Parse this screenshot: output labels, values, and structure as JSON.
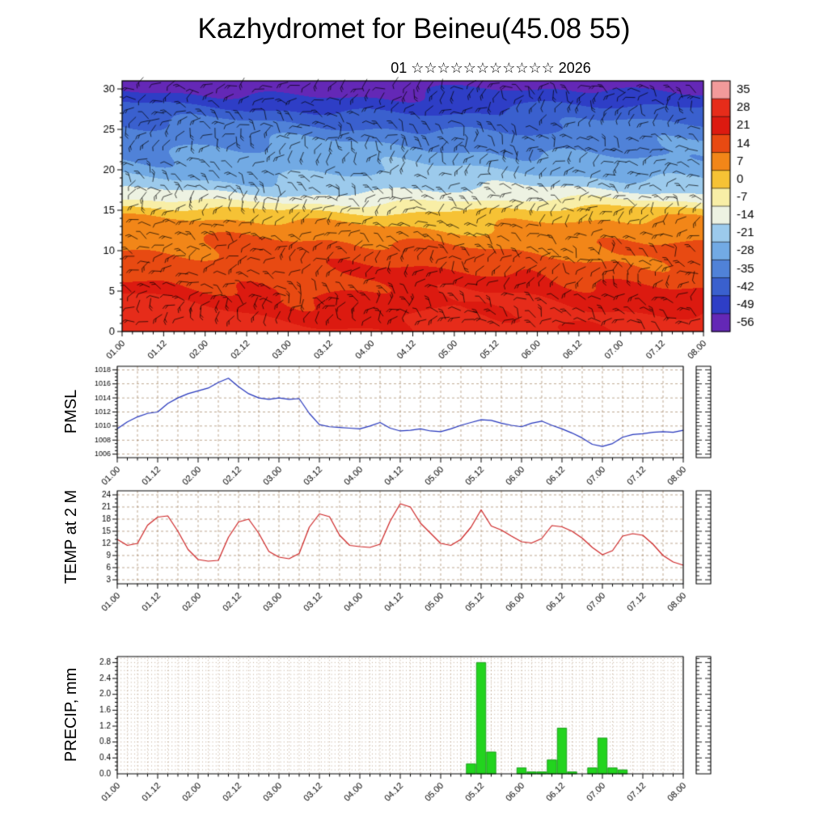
{
  "title": "Kazhydromet for Beineu(45.08 55)",
  "subtitle": {
    "text": "01 ☆☆☆☆☆☆☆☆☆☆☆ 2026",
    "day": "01",
    "stars": "☆☆☆☆☆☆☆☆☆☆☆",
    "year": "2026"
  },
  "x_axis": {
    "tick_labels": [
      "01.00",
      "01.12",
      "02.00",
      "02.12",
      "03.00",
      "03.12",
      "04.00",
      "04.12",
      "05.00",
      "05.12",
      "06.00",
      "06.12",
      "07.00",
      "07.12",
      "08.00"
    ],
    "hours_total": 168,
    "major_step_hours": 12,
    "minor_step_hours": 3
  },
  "chart_data": [
    {
      "type": "heatmap",
      "name": "temperature-wind-cross-section",
      "overlay": "wind-barbs",
      "ylim": [
        0,
        31
      ],
      "y_ticks": [
        0,
        5,
        10,
        15,
        20,
        25,
        30
      ],
      "y_tick_labels": [
        "0",
        "5",
        "10",
        "15",
        "20",
        "25",
        "30"
      ],
      "temperature_profile": {
        "heights": [
          0,
          2,
          5,
          8,
          11,
          13,
          14.5,
          15.5,
          16.5,
          18,
          20,
          23,
          26,
          28,
          30,
          31
        ],
        "values": [
          27,
          25,
          20,
          15,
          10,
          5,
          0,
          -6,
          -13,
          -20,
          -26,
          -32,
          -40,
          -47,
          -54,
          -58
        ]
      },
      "colorbar": {
        "labels": [
          "35",
          "28",
          "21",
          "14",
          "7",
          "0",
          "-7",
          "-14",
          "-21",
          "-28",
          "-35",
          "-42",
          "-49",
          "-56"
        ],
        "colors": [
          "#f29a9a",
          "#e62c1a",
          "#dc1a10",
          "#e84a12",
          "#f28618",
          "#f6c235",
          "#f8eea6",
          "#edf2e2",
          "#9ccaec",
          "#72aae4",
          "#5082d8",
          "#3a60ce",
          "#2e3ec6",
          "#6428b6"
        ]
      }
    },
    {
      "type": "line",
      "name": "pmsl",
      "ylabel": "PMSL",
      "line_color": "#2233bb",
      "ylim": [
        1005.5,
        1018.5
      ],
      "y_ticks": [
        1006,
        1008,
        1010,
        1012,
        1014,
        1016,
        1018
      ],
      "y_tick_labels": [
        "1006",
        "1008",
        "1010",
        "1012",
        "1014",
        "1016",
        "1018"
      ],
      "x_step_hours": 3,
      "values": [
        1009.6,
        1010.6,
        1011.3,
        1011.8,
        1012.0,
        1013.2,
        1014.0,
        1014.6,
        1015.0,
        1015.4,
        1016.2,
        1016.8,
        1015.6,
        1014.6,
        1014.0,
        1013.8,
        1014.0,
        1013.8,
        1013.9,
        1011.8,
        1010.2,
        1009.9,
        1009.8,
        1009.7,
        1009.6,
        1010.0,
        1010.5,
        1009.7,
        1009.3,
        1009.4,
        1009.6,
        1009.3,
        1009.2,
        1009.6,
        1010.1,
        1010.5,
        1010.9,
        1010.8,
        1010.4,
        1010.1,
        1009.9,
        1010.4,
        1010.7,
        1010.1,
        1009.6,
        1009.0,
        1008.3,
        1007.4,
        1007.1,
        1007.5,
        1008.4,
        1008.8,
        1008.9,
        1009.1,
        1009.2,
        1009.1,
        1009.4
      ]
    },
    {
      "type": "line",
      "name": "temp-at-2m",
      "ylabel": "TEMP at 2 M",
      "line_color": "#cc2020",
      "ylim": [
        2,
        25
      ],
      "y_ticks": [
        3,
        6,
        9,
        12,
        15,
        18,
        21,
        24
      ],
      "y_tick_labels": [
        "3",
        "6",
        "9",
        "12",
        "15",
        "18",
        "21",
        "24"
      ],
      "x_step_hours": 3,
      "values": [
        13.0,
        11.5,
        12.0,
        16.5,
        18.5,
        18.8,
        15.0,
        10.5,
        8.0,
        7.6,
        7.8,
        13.5,
        17.3,
        18.0,
        14.5,
        10.0,
        8.6,
        8.2,
        9.5,
        16.0,
        19.3,
        18.6,
        14.0,
        11.5,
        11.2,
        11.0,
        11.8,
        17.5,
        21.8,
        21.0,
        17.0,
        14.5,
        12.0,
        11.5,
        13.0,
        16.0,
        20.3,
        16.3,
        15.3,
        13.8,
        12.4,
        12.1,
        13.2,
        16.4,
        16.1,
        15.0,
        13.3,
        11.0,
        9.2,
        10.2,
        13.8,
        14.4,
        14.0,
        11.8,
        9.0,
        7.4,
        6.6
      ]
    },
    {
      "type": "bar",
      "name": "precip",
      "ylabel": "PRECIP, mm",
      "bar_color": "#22d41e",
      "bar_edge_color": "#0e8e0e",
      "ylim": [
        0,
        2.95
      ],
      "y_ticks": [
        0,
        0.4,
        0.8,
        1.2,
        1.6,
        2.0,
        2.4,
        2.8
      ],
      "y_tick_labels": [
        "0.0",
        "0.4",
        "0.8",
        "1.2",
        "1.6",
        "2.0",
        "2.4",
        "2.8"
      ],
      "bars": [
        {
          "t": "05.09",
          "i": 35,
          "v": 0.25
        },
        {
          "t": "05.12",
          "i": 36,
          "v": 2.8
        },
        {
          "t": "05.15",
          "i": 37,
          "v": 0.55
        },
        {
          "t": "06.00",
          "i": 40,
          "v": 0.15
        },
        {
          "t": "06.03",
          "i": 41,
          "v": 0.05
        },
        {
          "t": "06.06",
          "i": 42,
          "v": 0.05
        },
        {
          "t": "06.09",
          "i": 43,
          "v": 0.35
        },
        {
          "t": "06.12",
          "i": 44,
          "v": 1.15
        },
        {
          "t": "06.15",
          "i": 45,
          "v": 0.05
        },
        {
          "t": "06.21",
          "i": 47,
          "v": 0.15
        },
        {
          "t": "07.00",
          "i": 48,
          "v": 0.9
        },
        {
          "t": "07.03",
          "i": 49,
          "v": 0.15
        },
        {
          "t": "07.06",
          "i": 50,
          "v": 0.1
        }
      ]
    }
  ]
}
